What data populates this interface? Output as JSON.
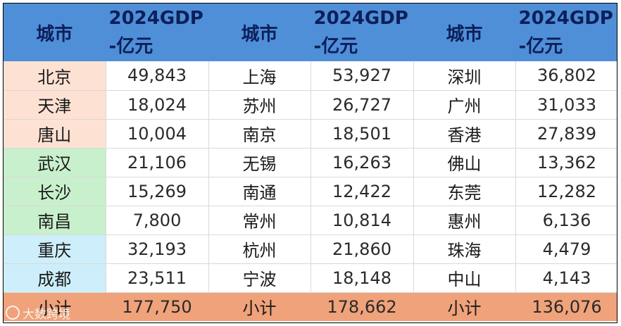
{
  "headers": {
    "city": "城市",
    "gdp_line1": "2024GDP",
    "gdp_line2": "-亿元"
  },
  "rows": [
    {
      "c1": "北京",
      "v1": "49,843",
      "c2": "上海",
      "v2": "53,927",
      "c3": "深圳",
      "v3": "36,802",
      "group": "north"
    },
    {
      "c1": "天津",
      "v1": "18,024",
      "c2": "苏州",
      "v2": "26,727",
      "c3": "广州",
      "v3": "31,033",
      "group": "north"
    },
    {
      "c1": "唐山",
      "v1": "10,004",
      "c2": "南京",
      "v2": "18,501",
      "c3": "香港",
      "v3": "27,839",
      "group": "north"
    },
    {
      "c1": "武汉",
      "v1": "21,106",
      "c2": "无锡",
      "v2": "16,263",
      "c3": "佛山",
      "v3": "13,362",
      "group": "central"
    },
    {
      "c1": "长沙",
      "v1": "15,269",
      "c2": "南通",
      "v2": "12,422",
      "c3": "东莞",
      "v3": "12,282",
      "group": "central"
    },
    {
      "c1": "南昌",
      "v1": "7,800",
      "c2": "常州",
      "v2": "10,814",
      "c3": "惠州",
      "v3": "6,136",
      "group": "central"
    },
    {
      "c1": "重庆",
      "v1": "32,193",
      "c2": "杭州",
      "v2": "21,860",
      "c3": "珠海",
      "v3": "4,479",
      "group": "west"
    },
    {
      "c1": "成都",
      "v1": "23,511",
      "c2": "宁波",
      "v2": "18,148",
      "c3": "中山",
      "v3": "4,143",
      "group": "west"
    }
  ],
  "totals": {
    "label": "小计",
    "v1": "177,750",
    "v2": "178,662",
    "v3": "136,076"
  },
  "watermark": "大数跨境",
  "colors": {
    "header": "#4f8fd8",
    "header_text": "#0d1f5a",
    "group_north": "#fde2d4",
    "group_central": "#c8f0cc",
    "group_west": "#cdeefa",
    "total_row": "#f0a27a"
  }
}
